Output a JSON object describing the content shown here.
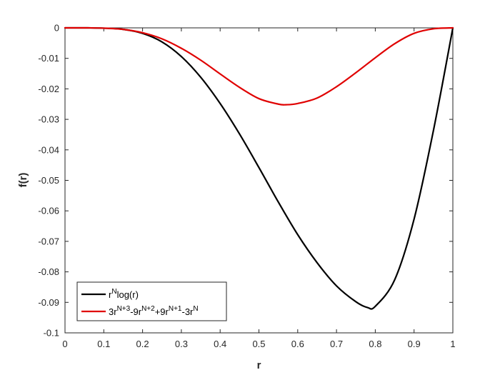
{
  "chart_data": {
    "type": "line",
    "title": "",
    "xlabel": "r",
    "ylabel": "f(r)",
    "xlim": [
      0,
      1
    ],
    "ylim": [
      -0.1,
      0
    ],
    "x_ticks": [
      "0",
      "0.1",
      "0.2",
      "0.3",
      "0.4",
      "0.5",
      "0.6",
      "0.7",
      "0.8",
      "0.9",
      "1"
    ],
    "y_ticks": [
      "0",
      "-0.01",
      "-0.02",
      "-0.03",
      "-0.04",
      "-0.05",
      "-0.06",
      "-0.07",
      "-0.08",
      "-0.09",
      "-0.1"
    ],
    "grid": false,
    "legend_position": "bottom-left",
    "series": [
      {
        "name": "r^N log(r)",
        "legend": {
          "base": "r",
          "sup": "N",
          "rest": "log(r)"
        },
        "color": "#000000",
        "x": [
          0,
          0.05,
          0.1,
          0.15,
          0.2,
          0.25,
          0.3,
          0.35,
          0.4,
          0.45,
          0.5,
          0.55,
          0.6,
          0.65,
          0.7,
          0.75,
          0.78,
          0.8,
          0.85,
          0.9,
          0.95,
          1.0
        ],
        "y": [
          0,
          0,
          -0.0001,
          -0.0005,
          -0.0018,
          -0.0046,
          -0.0094,
          -0.0162,
          -0.0248,
          -0.0348,
          -0.0458,
          -0.0571,
          -0.0678,
          -0.077,
          -0.0846,
          -0.0898,
          -0.0917,
          -0.0913,
          -0.0826,
          -0.0627,
          -0.0336,
          0
        ]
      },
      {
        "name": "3r^(N+3)-9r^(N+2)+9r^(N+1)-3r^N",
        "legend": "3r^{N+3}-9r^{N+2}+9r^{N+1}-3r^{N}",
        "color": "#e00000",
        "x": [
          0,
          0.05,
          0.1,
          0.15,
          0.2,
          0.25,
          0.3,
          0.35,
          0.4,
          0.45,
          0.5,
          0.55,
          0.57,
          0.6,
          0.65,
          0.7,
          0.75,
          0.8,
          0.85,
          0.9,
          0.95,
          1.0
        ],
        "y": [
          0,
          0,
          -0.0001,
          -0.0005,
          -0.0016,
          -0.0036,
          -0.0067,
          -0.0106,
          -0.0151,
          -0.0195,
          -0.0232,
          -0.025,
          -0.0252,
          -0.0248,
          -0.023,
          -0.0193,
          -0.0147,
          -0.0098,
          -0.0052,
          -0.0018,
          -0.0003,
          0
        ]
      }
    ]
  }
}
